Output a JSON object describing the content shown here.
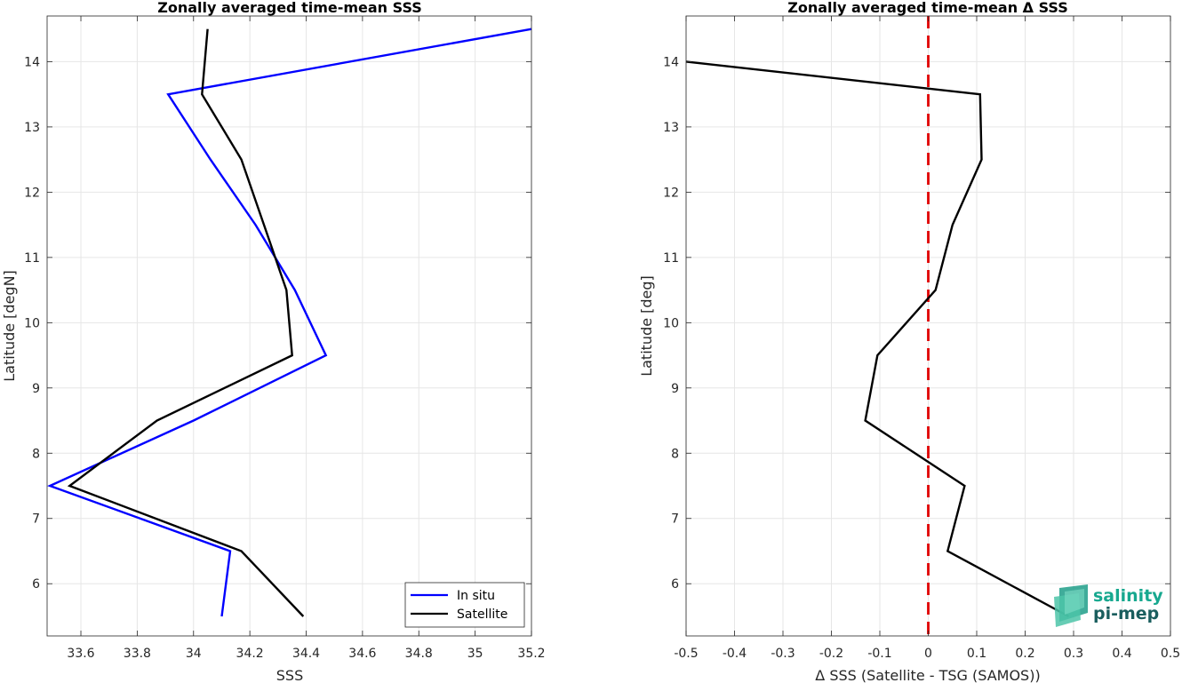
{
  "chart_data": [
    {
      "type": "line",
      "title": "Zonally averaged time-mean SSS",
      "xlabel": "SSS",
      "ylabel": "Latitude [degN]",
      "xlim": [
        33.48,
        35.2
      ],
      "ylim": [
        5.2,
        14.7
      ],
      "xticks": [
        33.6,
        33.8,
        34,
        34.2,
        34.4,
        34.6,
        34.8,
        35,
        35.2
      ],
      "xtick_labels": [
        "33.6",
        "33.8",
        "34",
        "34.2",
        "34.4",
        "34.6",
        "34.8",
        "35",
        "35.2"
      ],
      "yticks": [
        6,
        7,
        8,
        9,
        10,
        11,
        12,
        13,
        14
      ],
      "ytick_labels": [
        "6",
        "7",
        "8",
        "9",
        "10",
        "11",
        "12",
        "13",
        "14"
      ],
      "grid": true,
      "legend_position": "bottom-right",
      "series": [
        {
          "name": "In situ",
          "color": "#0000ff",
          "x": [
            34.1,
            34.13,
            33.49,
            34.0,
            34.47,
            34.36,
            34.22,
            34.06,
            33.91,
            35.2
          ],
          "y": [
            5.5,
            6.5,
            7.5,
            8.5,
            9.5,
            10.5,
            11.5,
            12.5,
            13.5,
            14.5
          ]
        },
        {
          "name": "Satellite",
          "color": "#000000",
          "x": [
            34.39,
            34.17,
            33.56,
            33.87,
            34.35,
            34.33,
            34.25,
            34.17,
            34.03,
            34.05
          ],
          "y": [
            5.5,
            6.5,
            7.5,
            8.5,
            9.5,
            10.5,
            11.5,
            12.5,
            13.5,
            14.5
          ]
        }
      ]
    },
    {
      "type": "line",
      "title": "Zonally averaged time-mean Δ SSS",
      "xlabel": "Δ SSS (Satellite - TSG (SAMOS))",
      "ylabel": "Latitude [deg]",
      "xlim": [
        -0.5,
        0.5
      ],
      "ylim": [
        5.2,
        14.7
      ],
      "xticks": [
        -0.5,
        -0.4,
        -0.3,
        -0.2,
        -0.1,
        0,
        0.1,
        0.2,
        0.3,
        0.4,
        0.5
      ],
      "xtick_labels": [
        "-0.5",
        "-0.4",
        "-0.3",
        "-0.2",
        "-0.1",
        "0",
        "0.1",
        "0.2",
        "0.3",
        "0.4",
        "0.5"
      ],
      "yticks": [
        6,
        7,
        8,
        9,
        10,
        11,
        12,
        13,
        14
      ],
      "ytick_labels": [
        "6",
        "7",
        "8",
        "9",
        "10",
        "11",
        "12",
        "13",
        "14"
      ],
      "grid": true,
      "reference_line": {
        "x": 0,
        "color": "#e00000",
        "style": "dashed"
      },
      "series": [
        {
          "color": "#000000",
          "x": [
            0.29,
            0.04,
            0.075,
            -0.13,
            -0.105,
            0.015,
            0.05,
            0.11,
            0.107,
            -0.5
          ],
          "y": [
            5.5,
            6.5,
            7.5,
            8.5,
            9.5,
            10.5,
            11.5,
            12.5,
            13.5,
            14.0
          ]
        }
      ]
    }
  ],
  "logo": {
    "line1": "salinity",
    "line2": "pi-mep"
  }
}
